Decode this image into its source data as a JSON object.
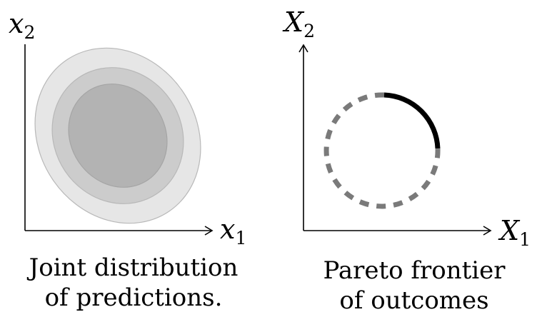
{
  "left_panel": {
    "x_axis_label": {
      "var": "x",
      "sub": "1"
    },
    "y_axis_label": {
      "var": "x",
      "sub": "2"
    },
    "caption": [
      "Joint distribution",
      "of predictions."
    ],
    "ellipse_fills": [
      "#e6e6e6",
      "#cccccc",
      "#b3b3b3"
    ],
    "ellipse_stroke": "#b8b8b8"
  },
  "right_panel": {
    "x_axis_label": {
      "var": "X",
      "sub": "1"
    },
    "y_axis_label": {
      "var": "X",
      "sub": "2"
    },
    "caption": [
      "Pareto frontier",
      "of outcomes"
    ],
    "frontier_color": "#000000",
    "dominated_color": "#7a7a7a"
  }
}
